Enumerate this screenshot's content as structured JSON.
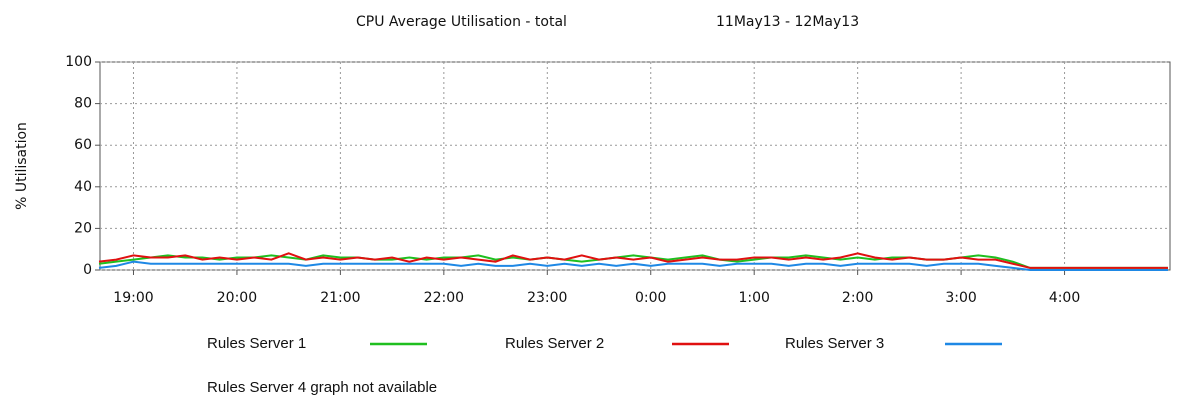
{
  "chart_data": {
    "type": "line",
    "title": "CPU Average Utilisation - total",
    "subtitle": "11May13 - 12May13",
    "y_label": "% Utilisation",
    "note": "Rules Server 4 graph not available",
    "x": [
      "18:40",
      "18:50",
      "19:00",
      "19:10",
      "19:20",
      "19:30",
      "19:40",
      "19:50",
      "20:00",
      "20:10",
      "20:20",
      "20:30",
      "20:40",
      "20:50",
      "21:00",
      "21:10",
      "21:20",
      "21:30",
      "21:40",
      "21:50",
      "22:00",
      "22:10",
      "22:20",
      "22:30",
      "22:40",
      "22:50",
      "23:00",
      "23:10",
      "23:20",
      "23:30",
      "23:40",
      "23:50",
      "0:00",
      "0:10",
      "0:20",
      "0:30",
      "0:40",
      "0:50",
      "1:00",
      "1:10",
      "1:20",
      "1:30",
      "1:40",
      "1:50",
      "2:00",
      "2:10",
      "2:20",
      "2:30",
      "2:40",
      "2:50",
      "3:00",
      "3:10",
      "3:20",
      "3:30",
      "3:40",
      "3:50",
      "4:00",
      "4:10",
      "4:20",
      "4:30",
      "4:40",
      "4:50",
      "5:00"
    ],
    "xticks": [
      "19:00",
      "20:00",
      "21:00",
      "22:00",
      "23:00",
      "0:00",
      "1:00",
      "2:00",
      "3:00",
      "4:00"
    ],
    "ylim": [
      0,
      100
    ],
    "yticks": [
      0,
      20,
      40,
      60,
      80,
      100
    ],
    "grid": true,
    "series": [
      {
        "name": "Rules Server 1",
        "color": "#1fbf1f",
        "values": [
          3,
          4,
          5,
          6,
          7,
          6,
          6,
          5,
          6,
          6,
          7,
          6,
          5,
          7,
          6,
          6,
          5,
          5,
          6,
          5,
          6,
          6,
          7,
          5,
          6,
          5,
          6,
          5,
          4,
          5,
          6,
          7,
          6,
          5,
          6,
          7,
          5,
          4,
          5,
          6,
          6,
          7,
          6,
          5,
          6,
          5,
          6,
          6,
          5,
          5,
          6,
          7,
          6,
          4,
          1,
          1,
          1,
          1,
          1,
          1,
          1,
          1,
          1
        ]
      },
      {
        "name": "Rules Server 2",
        "color": "#e01010",
        "values": [
          4,
          5,
          7,
          6,
          6,
          7,
          5,
          6,
          5,
          6,
          5,
          8,
          5,
          6,
          5,
          6,
          5,
          6,
          4,
          6,
          5,
          6,
          5,
          4,
          7,
          5,
          6,
          5,
          7,
          5,
          6,
          5,
          6,
          4,
          5,
          6,
          5,
          5,
          6,
          6,
          5,
          6,
          5,
          6,
          8,
          6,
          5,
          6,
          5,
          5,
          6,
          5,
          5,
          3,
          1,
          1,
          1,
          1,
          1,
          1,
          1,
          1,
          1
        ]
      },
      {
        "name": "Rules Server 3",
        "color": "#1e88e5",
        "values": [
          1,
          2,
          4,
          3,
          3,
          3,
          3,
          3,
          3,
          3,
          3,
          3,
          2,
          3,
          3,
          3,
          3,
          3,
          3,
          3,
          3,
          2,
          3,
          2,
          2,
          3,
          2,
          3,
          2,
          3,
          2,
          3,
          2,
          3,
          3,
          3,
          2,
          3,
          3,
          3,
          2,
          3,
          3,
          2,
          3,
          3,
          3,
          3,
          2,
          3,
          3,
          3,
          2,
          1,
          0,
          0,
          0,
          0,
          0,
          0,
          0,
          0,
          0
        ]
      }
    ]
  }
}
